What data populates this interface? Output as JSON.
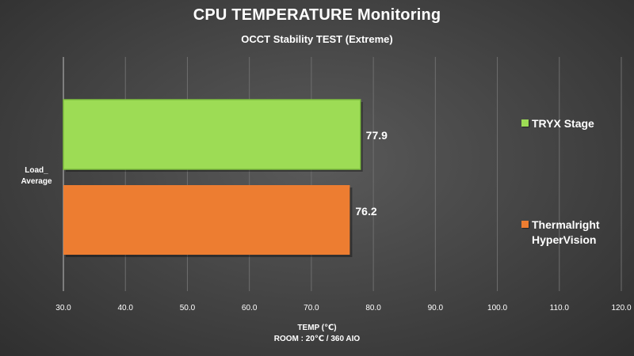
{
  "chart_data": {
    "type": "bar",
    "orientation": "horizontal",
    "title": "CPU TEMPERATURE Monitoring",
    "subtitle": "OCCT Stability TEST (Extreme)",
    "xlabel": "TEMP (℃)",
    "xlabel_note": "ROOM : 20℃ / 360 AIO",
    "ylabel": "",
    "categories": [
      "Load_ Average"
    ],
    "xlim": [
      30,
      120
    ],
    "xticks": [
      "30.0",
      "40.0",
      "50.0",
      "60.0",
      "70.0",
      "80.0",
      "90.0",
      "100.0",
      "110.0",
      "120.0"
    ],
    "grid": true,
    "legend_position": "right",
    "series": [
      {
        "name": "TRYX Stage",
        "values": [
          77.9
        ],
        "label": "77.9",
        "color": "#9ddc55"
      },
      {
        "name": "Thermalright HyperVision",
        "values": [
          76.2
        ],
        "label": "76.2",
        "color": "#ed7d31"
      }
    ]
  }
}
